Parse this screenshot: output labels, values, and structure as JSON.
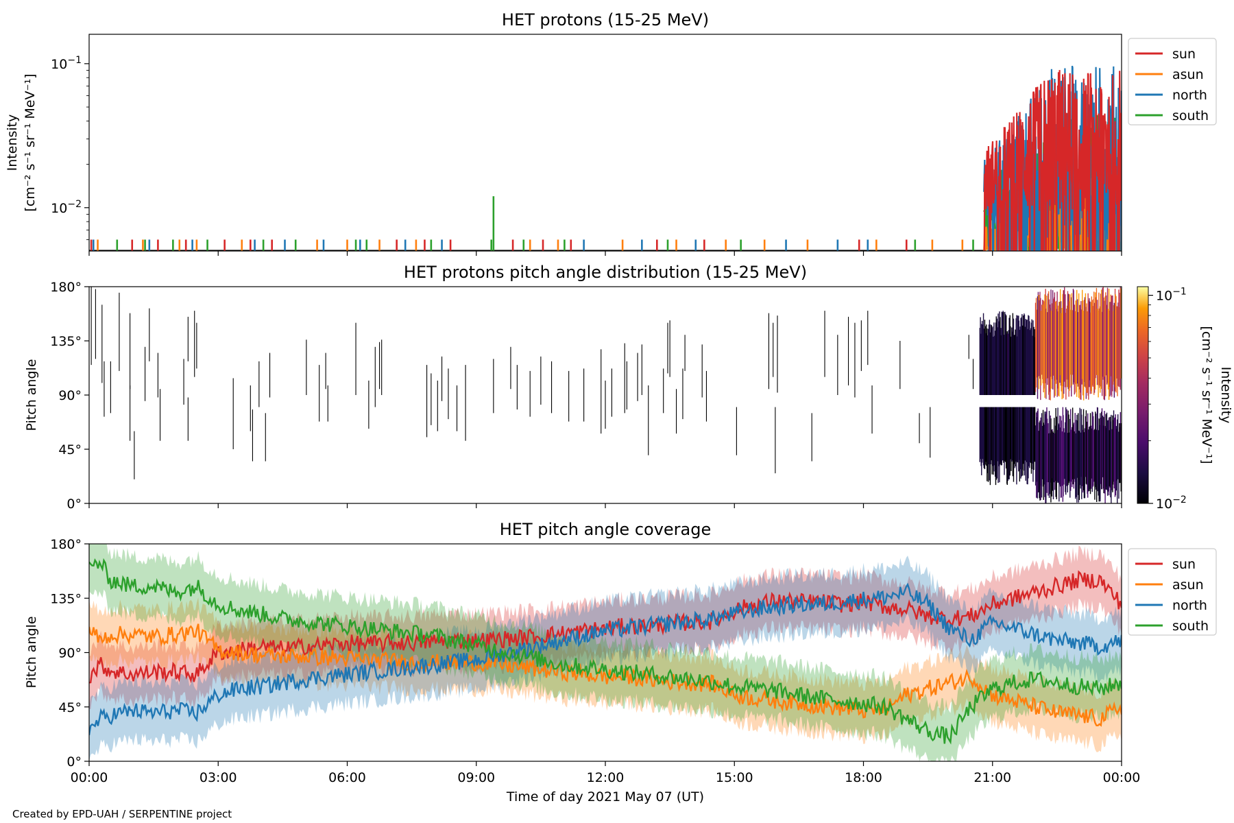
{
  "figure": {
    "credit": "Created by EPD-UAH / SERPENTINE project",
    "xlabel": "Time of day 2021 May 07 (UT)",
    "xticks": [
      "00:00",
      "03:00",
      "06:00",
      "09:00",
      "12:00",
      "15:00",
      "18:00",
      "21:00",
      "00:00"
    ],
    "xticks_hours": [
      0,
      3,
      6,
      9,
      12,
      15,
      18,
      21,
      24
    ]
  },
  "colors": {
    "sun": "#d62728",
    "asun": "#ff7f0e",
    "north": "#1f77b4",
    "south": "#2ca02c"
  },
  "chart_data": [
    {
      "type": "line",
      "title": "HET protons (15-25 MeV)",
      "ylabel_line1": "Intensity",
      "ylabel_line2": "[cm⁻² s⁻¹ sr⁻¹ MeV⁻¹]",
      "yscale": "log",
      "ylim": [
        0.005,
        0.16
      ],
      "xlim_hours": [
        0,
        24
      ],
      "yticks": [
        {
          "value": 0.01,
          "base": "10",
          "exp": "−2"
        },
        {
          "value": 0.1,
          "base": "10",
          "exp": "−1"
        }
      ],
      "legend": [
        "sun",
        "asun",
        "north",
        "south"
      ],
      "legend_position": "right-upper",
      "baseline_value": 0.005,
      "sparse_spikes": [
        {
          "series": "sun",
          "hours": [
            0.05,
            1.0,
            1.6,
            2.25,
            3.15,
            3.75,
            4.25,
            7.15,
            7.8,
            8.4,
            9.85,
            10.55,
            11.2,
            13.2,
            14.3,
            17.9,
            19.0
          ],
          "value": 0.006
        },
        {
          "series": "asun",
          "hours": [
            0.2,
            1.25,
            2.1,
            2.5,
            3.55,
            5.3,
            6.0,
            6.75,
            7.6,
            10.25,
            10.9,
            12.4,
            13.65,
            14.8,
            15.7,
            16.7,
            18.3,
            19.6,
            20.3
          ],
          "value": 0.006
        },
        {
          "series": "north",
          "hours": [
            0.1,
            1.4,
            2.4,
            3.85,
            4.55,
            5.45,
            6.3,
            7.35,
            8.2,
            11.5,
            12.85,
            14.1,
            16.2,
            17.4,
            18.1,
            20.9
          ],
          "value": 0.006
        },
        {
          "series": "south",
          "hours": [
            0.65,
            1.3,
            1.95,
            2.75,
            4.05,
            4.8,
            6.2,
            6.45,
            7.95,
            9.35,
            10.1,
            11.05,
            13.45,
            15.15,
            19.2,
            20.55
          ],
          "value": 0.006
        },
        {
          "series": "south",
          "hours": [
            9.4
          ],
          "value": 0.012
        }
      ],
      "dense_interval_hours": [
        20.8,
        24
      ],
      "dense_ranges": {
        "sun": [
          0.009,
          0.095
        ],
        "asun": [
          0.005,
          0.02
        ],
        "north": [
          0.006,
          0.1
        ],
        "south": [
          0.005,
          0.045
        ]
      }
    },
    {
      "type": "heatmap",
      "title": "HET protons pitch angle distribution (15-25 MeV)",
      "ylabel": "Pitch angle",
      "ylim": [
        0,
        180
      ],
      "yticks": [
        "0°",
        "45°",
        "90°",
        "135°",
        "180°"
      ],
      "ytick_values": [
        0,
        45,
        90,
        135,
        180
      ],
      "colorbar": {
        "label_line1": "Intensity",
        "label_line2": "[cm⁻² s⁻¹ sr⁻¹ MeV⁻¹]",
        "scale": "log",
        "range": [
          0.01,
          0.11
        ],
        "ticks": [
          {
            "value": 0.01,
            "base": "10",
            "exp": "−2"
          },
          {
            "value": 0.1,
            "base": "10",
            "exp": "−1"
          }
        ],
        "colormap": "inferno"
      },
      "sparse_segments": [
        {
          "hour": 0.05,
          "pa": [
            115,
            180
          ]
        },
        {
          "hour": 0.15,
          "pa": [
            120,
            178
          ]
        },
        {
          "hour": 0.3,
          "pa": [
            100,
            165
          ]
        },
        {
          "hour": 0.35,
          "pa": [
            72,
            118
          ]
        },
        {
          "hour": 0.5,
          "pa": [
            75,
            118
          ]
        },
        {
          "hour": 0.7,
          "pa": [
            110,
            175
          ]
        },
        {
          "hour": 0.95,
          "pa": [
            95,
            158
          ]
        },
        {
          "hour": 0.95,
          "pa": [
            52,
            98
          ]
        },
        {
          "hour": 1.05,
          "pa": [
            20,
            60
          ]
        },
        {
          "hour": 1.3,
          "pa": [
            85,
            130
          ]
        },
        {
          "hour": 1.4,
          "pa": [
            118,
            162
          ]
        },
        {
          "hour": 1.6,
          "pa": [
            88,
            125
          ]
        },
        {
          "hour": 1.65,
          "pa": [
            52,
            95
          ]
        },
        {
          "hour": 2.2,
          "pa": [
            82,
            120
          ]
        },
        {
          "hour": 2.3,
          "pa": [
            118,
            155
          ]
        },
        {
          "hour": 2.3,
          "pa": [
            52,
            88
          ]
        },
        {
          "hour": 2.45,
          "pa": [
            105,
            160
          ]
        },
        {
          "hour": 2.5,
          "pa": [
            112,
            150
          ]
        },
        {
          "hour": 3.35,
          "pa": [
            45,
            104
          ]
        },
        {
          "hour": 3.75,
          "pa": [
            60,
            98
          ]
        },
        {
          "hour": 3.8,
          "pa": [
            35,
            78
          ]
        },
        {
          "hour": 3.95,
          "pa": [
            80,
            118
          ]
        },
        {
          "hour": 4.1,
          "pa": [
            35,
            75
          ]
        },
        {
          "hour": 4.2,
          "pa": [
            88,
            125
          ]
        },
        {
          "hour": 5.05,
          "pa": [
            90,
            136
          ]
        },
        {
          "hour": 5.35,
          "pa": [
            68,
            115
          ]
        },
        {
          "hour": 5.5,
          "pa": [
            95,
            125
          ]
        },
        {
          "hour": 5.55,
          "pa": [
            68,
            98
          ]
        },
        {
          "hour": 6.2,
          "pa": [
            90,
            150
          ]
        },
        {
          "hour": 6.5,
          "pa": [
            62,
            102
          ]
        },
        {
          "hour": 6.65,
          "pa": [
            80,
            130
          ]
        },
        {
          "hour": 6.75,
          "pa": [
            95,
            134
          ]
        },
        {
          "hour": 6.8,
          "pa": [
            90,
            136
          ]
        },
        {
          "hour": 7.85,
          "pa": [
            55,
            115
          ]
        },
        {
          "hour": 7.95,
          "pa": [
            65,
            108
          ]
        },
        {
          "hour": 8.1,
          "pa": [
            60,
            102
          ]
        },
        {
          "hour": 8.2,
          "pa": [
            85,
            122
          ]
        },
        {
          "hour": 8.35,
          "pa": [
            70,
            112
          ]
        },
        {
          "hour": 8.55,
          "pa": [
            60,
            98
          ]
        },
        {
          "hour": 8.75,
          "pa": [
            52,
            115
          ]
        },
        {
          "hour": 9.4,
          "pa": [
            75,
            120
          ]
        },
        {
          "hour": 9.8,
          "pa": [
            95,
            130
          ]
        },
        {
          "hour": 9.95,
          "pa": [
            78,
            115
          ]
        },
        {
          "hour": 10.25,
          "pa": [
            72,
            110
          ]
        },
        {
          "hour": 10.5,
          "pa": [
            82,
            122
          ]
        },
        {
          "hour": 10.75,
          "pa": [
            75,
            118
          ]
        },
        {
          "hour": 11.15,
          "pa": [
            68,
            110
          ]
        },
        {
          "hour": 11.5,
          "pa": [
            68,
            112
          ]
        },
        {
          "hour": 11.9,
          "pa": [
            58,
            128
          ]
        },
        {
          "hour": 12.0,
          "pa": [
            62,
            102
          ]
        },
        {
          "hour": 12.15,
          "pa": [
            72,
            112
          ]
        },
        {
          "hour": 12.45,
          "pa": [
            75,
            133
          ]
        },
        {
          "hour": 12.5,
          "pa": [
            78,
            118
          ]
        },
        {
          "hour": 12.75,
          "pa": [
            85,
            125
          ]
        },
        {
          "hour": 12.85,
          "pa": [
            90,
            132
          ]
        },
        {
          "hour": 13.0,
          "pa": [
            40,
            98
          ]
        },
        {
          "hour": 13.35,
          "pa": [
            75,
            112
          ]
        },
        {
          "hour": 13.45,
          "pa": [
            108,
            150
          ]
        },
        {
          "hour": 13.5,
          "pa": [
            105,
            152
          ]
        },
        {
          "hour": 13.65,
          "pa": [
            58,
            95
          ]
        },
        {
          "hour": 13.8,
          "pa": [
            70,
            112
          ]
        },
        {
          "hour": 13.85,
          "pa": [
            110,
            140
          ]
        },
        {
          "hour": 14.25,
          "pa": [
            88,
            132
          ]
        },
        {
          "hour": 14.35,
          "pa": [
            68,
            110
          ]
        },
        {
          "hour": 15.05,
          "pa": [
            40,
            80
          ]
        },
        {
          "hour": 15.8,
          "pa": [
            95,
            158
          ]
        },
        {
          "hour": 15.9,
          "pa": [
            105,
            150
          ]
        },
        {
          "hour": 15.95,
          "pa": [
            25,
            80
          ]
        },
        {
          "hour": 16.0,
          "pa": [
            92,
            156
          ]
        },
        {
          "hour": 16.8,
          "pa": [
            35,
            75
          ]
        },
        {
          "hour": 17.1,
          "pa": [
            105,
            160
          ]
        },
        {
          "hour": 17.4,
          "pa": [
            90,
            140
          ]
        },
        {
          "hour": 17.65,
          "pa": [
            98,
            155
          ]
        },
        {
          "hour": 17.8,
          "pa": [
            88,
            150
          ]
        },
        {
          "hour": 17.95,
          "pa": [
            110,
            152
          ]
        },
        {
          "hour": 18.1,
          "pa": [
            115,
            160
          ]
        },
        {
          "hour": 18.2,
          "pa": [
            58,
            98
          ]
        },
        {
          "hour": 18.85,
          "pa": [
            95,
            135
          ]
        },
        {
          "hour": 19.3,
          "pa": [
            50,
            75
          ]
        },
        {
          "hour": 19.55,
          "pa": [
            38,
            80
          ]
        },
        {
          "hour": 20.45,
          "pa": [
            120,
            140
          ]
        },
        {
          "hour": 20.55,
          "pa": [
            95,
            120
          ]
        }
      ],
      "dense_interval_hours": [
        20.7,
        24
      ],
      "dense_bands": [
        {
          "hours": [
            20.7,
            22.0
          ],
          "pa": [
            15,
            160
          ],
          "gap": [
            80,
            90
          ],
          "intensity": [
            0.01,
            0.015
          ]
        },
        {
          "hours": [
            22.0,
            24.0
          ],
          "pa": [
            85,
            180
          ],
          "intensity": [
            0.02,
            0.09
          ]
        },
        {
          "hours": [
            22.0,
            24.0
          ],
          "pa": [
            0,
            80
          ],
          "intensity": [
            0.01,
            0.02
          ]
        }
      ]
    },
    {
      "type": "line",
      "title": "HET pitch angle coverage",
      "ylabel": "Pitch angle",
      "ylim": [
        0,
        180
      ],
      "xlim_hours": [
        0,
        24
      ],
      "yticks": [
        "0°",
        "45°",
        "90°",
        "135°",
        "180°"
      ],
      "ytick_values": [
        0,
        45,
        90,
        135,
        180
      ],
      "legend": [
        "sun",
        "asun",
        "north",
        "south"
      ],
      "legend_position": "right-upper",
      "x": [
        0,
        0.25,
        0.5,
        1,
        1.5,
        2,
        2.5,
        3,
        3.5,
        4,
        4.5,
        5,
        5.5,
        6,
        6.5,
        7,
        7.5,
        8,
        8.5,
        9,
        9.5,
        10,
        10.5,
        11,
        11.5,
        12,
        12.5,
        13,
        13.5,
        14,
        14.5,
        15,
        15.5,
        16,
        16.5,
        17,
        17.5,
        18,
        18.5,
        19,
        19.5,
        20,
        20.5,
        21,
        21.5,
        22,
        22.5,
        23,
        23.5,
        24
      ],
      "series": [
        {
          "name": "sun",
          "values": [
            70,
            80,
            75,
            72,
            74,
            74,
            72,
            90,
            92,
            95,
            93,
            95,
            96,
            98,
            97,
            98,
            98,
            99,
            100,
            100,
            101,
            102,
            104,
            106,
            108,
            110,
            112,
            112,
            114,
            115,
            116,
            125,
            130,
            133,
            132,
            132,
            130,
            132,
            128,
            126,
            120,
            118,
            120,
            130,
            135,
            140,
            145,
            150,
            150,
            130
          ],
          "band": 22
        },
        {
          "name": "asun",
          "values": [
            110,
            100,
            105,
            105,
            103,
            105,
            108,
            92,
            90,
            88,
            87,
            87,
            86,
            85,
            84,
            83,
            82,
            82,
            81,
            82,
            80,
            78,
            76,
            74,
            72,
            70,
            70,
            68,
            66,
            65,
            64,
            55,
            52,
            50,
            48,
            46,
            44,
            42,
            43,
            55,
            60,
            65,
            70,
            55,
            50,
            45,
            40,
            38,
            35,
            45
          ],
          "band": 22
        },
        {
          "name": "north",
          "values": [
            25,
            35,
            38,
            42,
            40,
            42,
            40,
            55,
            60,
            62,
            65,
            68,
            70,
            72,
            74,
            76,
            78,
            80,
            82,
            84,
            88,
            92,
            96,
            100,
            104,
            108,
            110,
            112,
            114,
            116,
            118,
            122,
            126,
            128,
            130,
            130,
            132,
            134,
            136,
            140,
            130,
            110,
            100,
            115,
            110,
            105,
            100,
            98,
            95,
            100
          ],
          "band": 24
        },
        {
          "name": "south",
          "values": [
            160,
            165,
            150,
            145,
            145,
            140,
            145,
            130,
            125,
            122,
            118,
            116,
            114,
            112,
            110,
            108,
            106,
            104,
            100,
            96,
            92,
            88,
            84,
            80,
            78,
            76,
            74,
            72,
            70,
            68,
            66,
            62,
            60,
            58,
            55,
            52,
            50,
            48,
            45,
            35,
            25,
            20,
            45,
            60,
            65,
            68,
            65,
            62,
            60,
            65
          ],
          "band": 24
        }
      ]
    }
  ]
}
